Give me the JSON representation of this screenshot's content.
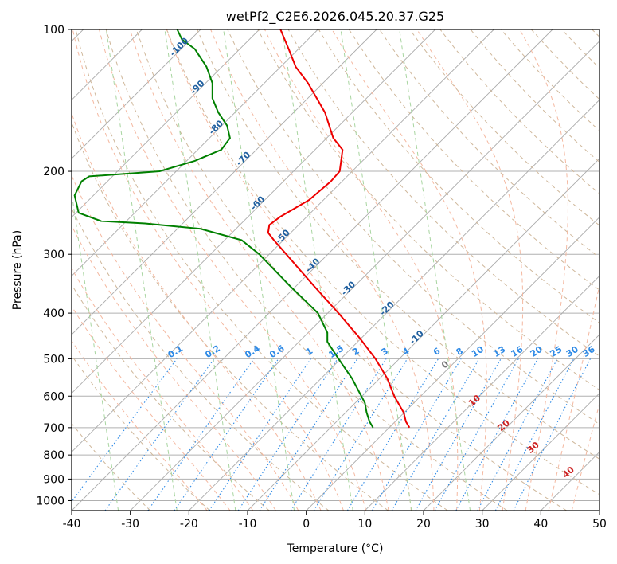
{
  "chart_data": {
    "type": "line",
    "subtype": "skew-t log-p diagram",
    "title": "wetPf2_C2E6.2026.045.20.37.G25",
    "xlabel": "Temperature (°C)",
    "ylabel": "Pressure (hPa)",
    "xlim": [
      -40,
      50
    ],
    "ylim": [
      1050,
      100
    ],
    "y_scale": "log",
    "x_ticks": [
      -40,
      -30,
      -20,
      -10,
      0,
      10,
      20,
      30,
      40,
      50
    ],
    "y_ticks": [
      100,
      200,
      300,
      400,
      500,
      600,
      700,
      800,
      900,
      1000
    ],
    "grid": true,
    "colors": {
      "temperature": "#ee0000",
      "dewpoint": "#008000",
      "isotherm_label": "#1f5f9f",
      "mixing_ratio": "#2e8ae6",
      "wet_adiabat": "#cc2222",
      "wet_adiabat_label_zero": "#777777",
      "dry_adiabat": "#cfb79a",
      "isotherm_line": "#aaaaaa"
    },
    "isotherm_labels": [
      -100,
      -90,
      -80,
      -70,
      -60,
      -50,
      -40,
      -30,
      -20,
      -10
    ],
    "mixing_ratio_labels": [
      "0.1",
      "0.2",
      "0.4",
      "0.6",
      "1",
      "1.5",
      "2",
      "3",
      "4",
      "6",
      "8",
      "10",
      "13",
      "16",
      "20",
      "25",
      "30",
      "36"
    ],
    "wet_adiabat_labels": [
      "0",
      "10",
      "20",
      "30",
      "40"
    ],
    "series": [
      {
        "name": "temperature",
        "points": [
          {
            "p": 700,
            "t": 17.6
          },
          {
            "p": 680,
            "t": 17.0
          },
          {
            "p": 650,
            "t": 16.6
          },
          {
            "p": 600,
            "t": 15.0
          },
          {
            "p": 550,
            "t": 13.8
          },
          {
            "p": 500,
            "t": 11.8
          },
          {
            "p": 450,
            "t": 9.0
          },
          {
            "p": 400,
            "t": 5.5
          },
          {
            "p": 350,
            "t": 1.3
          },
          {
            "p": 300,
            "t": -3.4
          },
          {
            "p": 280,
            "t": -5.5
          },
          {
            "p": 270,
            "t": -6.5
          },
          {
            "p": 260,
            "t": -6.3
          },
          {
            "p": 250,
            "t": -4.5
          },
          {
            "p": 230,
            "t": 0.5
          },
          {
            "p": 210,
            "t": 4.2
          },
          {
            "p": 200,
            "t": 5.7
          },
          {
            "p": 180,
            "t": 6.2
          },
          {
            "p": 170,
            "t": 4.6
          },
          {
            "p": 150,
            "t": 3.2
          },
          {
            "p": 130,
            "t": 0.3
          },
          {
            "p": 120,
            "t": -1.8
          },
          {
            "p": 110,
            "t": -3.0
          },
          {
            "p": 100,
            "t": -4.4
          }
        ]
      },
      {
        "name": "dewpoint",
        "points": [
          {
            "p": 700,
            "t": 11.4
          },
          {
            "p": 680,
            "t": 10.8
          },
          {
            "p": 650,
            "t": 10.3
          },
          {
            "p": 620,
            "t": 10.0
          },
          {
            "p": 600,
            "t": 9.4
          },
          {
            "p": 550,
            "t": 7.8
          },
          {
            "p": 500,
            "t": 5.5
          },
          {
            "p": 460,
            "t": 3.6
          },
          {
            "p": 440,
            "t": 3.6
          },
          {
            "p": 400,
            "t": 2.0
          },
          {
            "p": 350,
            "t": -2.8
          },
          {
            "p": 300,
            "t": -8.0
          },
          {
            "p": 280,
            "t": -11.0
          },
          {
            "p": 265,
            "t": -18.0
          },
          {
            "p": 258,
            "t": -27.5
          },
          {
            "p": 255,
            "t": -35.0
          },
          {
            "p": 245,
            "t": -38.8
          },
          {
            "p": 225,
            "t": -39.5
          },
          {
            "p": 210,
            "t": -38.3
          },
          {
            "p": 205,
            "t": -37.0
          },
          {
            "p": 200,
            "t": -25.0
          },
          {
            "p": 190,
            "t": -19.0
          },
          {
            "p": 180,
            "t": -14.5
          },
          {
            "p": 170,
            "t": -13.0
          },
          {
            "p": 160,
            "t": -13.5
          },
          {
            "p": 150,
            "t": -15.0
          },
          {
            "p": 140,
            "t": -16.0
          },
          {
            "p": 130,
            "t": -16.0
          },
          {
            "p": 120,
            "t": -17.0
          },
          {
            "p": 110,
            "t": -19.0
          },
          {
            "p": 105,
            "t": -21.2
          },
          {
            "p": 100,
            "t": -22.0
          }
        ]
      }
    ]
  }
}
